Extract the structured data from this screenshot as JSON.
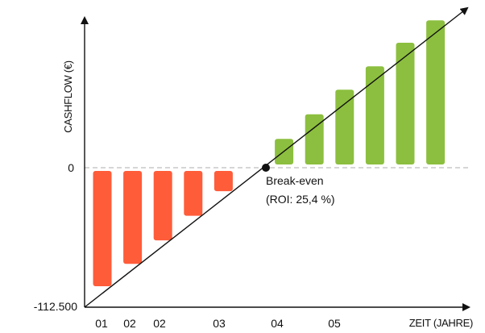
{
  "chart_data": {
    "type": "bar",
    "ylabel": "CASHFLOW (€)",
    "xlabel": "ZEIT (JAHRE)",
    "y_tick_labels": [
      "0",
      "-112.500"
    ],
    "ylim": [
      -112500,
      130000
    ],
    "x_tick_labels": [
      "01",
      "02",
      "02",
      "03",
      "04",
      "05"
    ],
    "series": [
      {
        "values": [
          -111000,
          -90000,
          -68000,
          -45000,
          -22000,
          0,
          24000,
          47000,
          70000,
          92000,
          114000,
          135000
        ],
        "colors": [
          "#ff5c3a",
          "#ff5c3a",
          "#ff5c3a",
          "#ff5c3a",
          "#ff5c3a",
          "#8cbf3f",
          "#8cbf3f",
          "#8cbf3f",
          "#8cbf3f",
          "#8cbf3f",
          "#8cbf3f",
          "#8cbf3f"
        ]
      }
    ],
    "annotation": {
      "label_line1": "Break-even",
      "label_line2": "(ROI: 25,4 %)"
    },
    "zero_line": "dashed",
    "grid": false,
    "legend": "none"
  }
}
